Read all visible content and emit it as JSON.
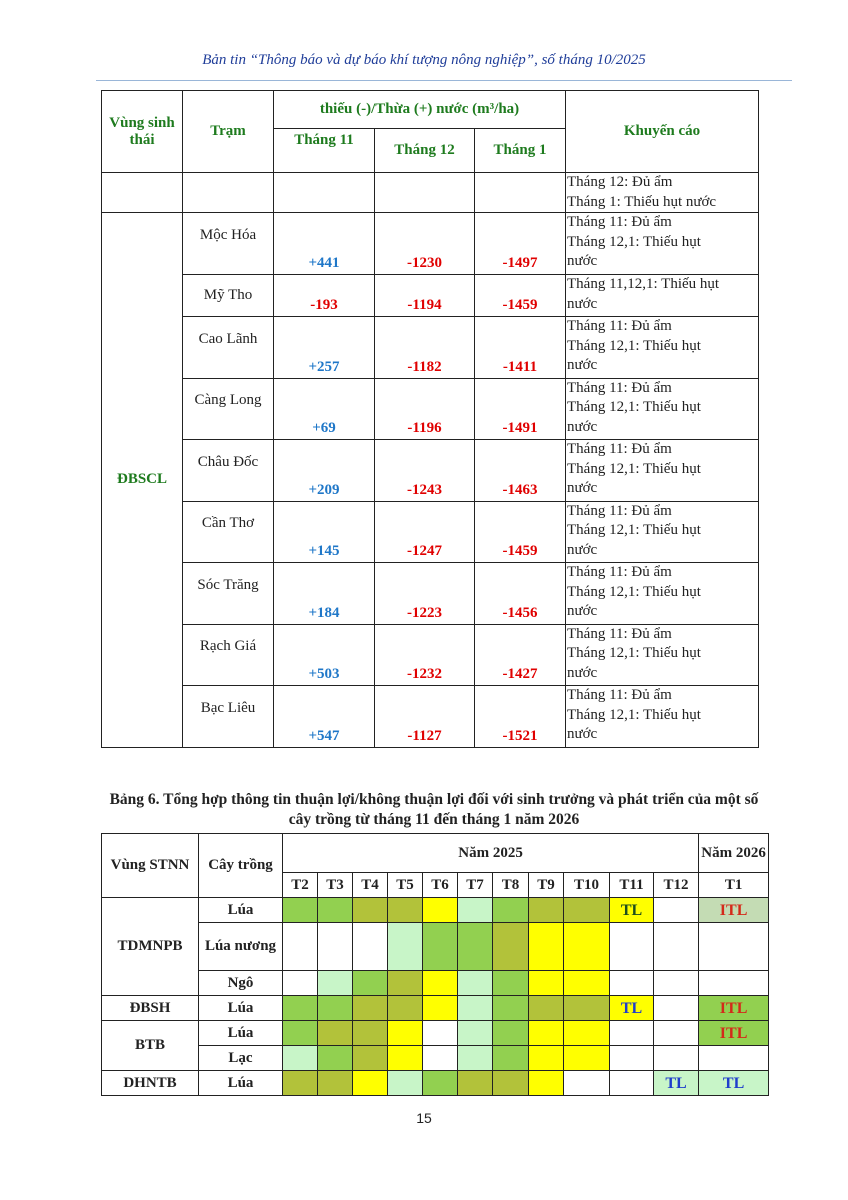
{
  "header": "Bản tin “Thông báo và dự báo khí tượng nông nghiệp”, số tháng 10/2025",
  "table5": {
    "headers": {
      "region": "Vùng sinh thái",
      "station": "Trạm",
      "group": "thiếu (-)/Thừa (+) nước (m³/ha)",
      "m11": "Tháng 11",
      "m12": "Tháng 12",
      "m1": "Tháng 1",
      "advice": "Khuyến cáo"
    },
    "first_row_advice": [
      "Tháng 12: Đủ ẩm",
      "Tháng 1: Thiếu hụt nước"
    ],
    "region": "ĐBSCL",
    "rows": [
      {
        "station": "Mộc Hóa",
        "m11": "+441",
        "m12": "-1230",
        "m1": "-1497",
        "advice": [
          "Tháng 11: Đủ ẩm",
          "Tháng 12,1: Thiếu hụt",
          "nước"
        ]
      },
      {
        "station": "Mỹ Tho",
        "m11": "-193",
        "m12": "-1194",
        "m1": "-1459",
        "advice": [
          "Tháng 11,12,1: Thiếu hụt",
          "nước"
        ]
      },
      {
        "station": "Cao Lãnh",
        "m11": "+257",
        "m12": "-1182",
        "m1": "-1411",
        "advice": [
          "Tháng 11: Đủ ẩm",
          "Tháng 12,1: Thiếu hụt",
          "nước"
        ]
      },
      {
        "station": "Càng Long",
        "m11": "+69",
        "m12": "-1196",
        "m1": "-1491",
        "advice": [
          "Tháng 11: Đủ ẩm",
          "Tháng 12,1: Thiếu hụt",
          "nước"
        ]
      },
      {
        "station": "Châu Đốc",
        "m11": "+209",
        "m12": "-1243",
        "m1": "-1463",
        "advice": [
          "Tháng 11: Đủ ẩm",
          "Tháng 12,1: Thiếu hụt",
          "nước"
        ]
      },
      {
        "station": "Cần Thơ",
        "m11": "+145",
        "m12": "-1247",
        "m1": "-1459",
        "advice": [
          "Tháng 11: Đủ ẩm",
          "Tháng 12,1: Thiếu hụt",
          "nước"
        ]
      },
      {
        "station": "Sóc Trăng",
        "m11": "+184",
        "m12": "-1223",
        "m1": "-1456",
        "advice": [
          "Tháng 11: Đủ ẩm",
          "Tháng 12,1: Thiếu hụt",
          "nước"
        ]
      },
      {
        "station": "Rạch Giá",
        "m11": "+503",
        "m12": "-1232",
        "m1": "-1427",
        "advice": [
          "Tháng 11: Đủ ẩm",
          "Tháng 12,1: Thiếu hụt",
          "nước"
        ]
      },
      {
        "station": "Bạc Liêu",
        "m11": "+547",
        "m12": "-1127",
        "m1": "-1521",
        "advice": [
          "Tháng 11: Đủ ẩm",
          "Tháng 12,1: Thiếu hụt",
          "nước"
        ]
      }
    ]
  },
  "table6": {
    "title": "Bảng 6. Tổng hợp thông tin thuận lợi/không thuận lợi đối với sinh trưởng và phát triển của một số cây trồng từ tháng 11 đến tháng 1 năm 2026",
    "headers": {
      "region": "Vùng STNN",
      "crop": "Cây trồng",
      "y2025": "Năm 2025",
      "y2026": "Năm 2026",
      "months": [
        "T2",
        "T3",
        "T4",
        "T5",
        "T6",
        "T7",
        "T8",
        "T9",
        "T10",
        "T11",
        "T12",
        "T1"
      ]
    },
    "colors": {
      "G": "#92d050",
      "O": "#b2c23a",
      "Y": "#ffff00",
      "L": "#c8f5c8",
      "S": "#c4dcb4",
      "W": "#ffffff",
      "text_blue": "#1f3dcc",
      "text_red": "#d42a1a",
      "text_dark": "#1d4d1d"
    },
    "groups": [
      {
        "region": "TDMNPB",
        "rows": [
          {
            "crop": "Lúa",
            "cells": [
              "G",
              "G",
              "O",
              "O",
              "Y",
              "L",
              "G",
              "O",
              "O",
              "Y",
              "W",
              "S"
            ],
            "labels": {
              "9": [
                "TL",
                "text_dark"
              ],
              "11": [
                "ITL",
                "text_red"
              ]
            }
          },
          {
            "crop": "Lúa nương",
            "cells": [
              "W",
              "W",
              "W",
              "L",
              "G",
              "G",
              "O",
              "Y",
              "Y",
              "W",
              "W",
              "W"
            ],
            "labels": {}
          },
          {
            "crop": "Ngô",
            "cells": [
              "W",
              "L",
              "G",
              "O",
              "Y",
              "L",
              "G",
              "Y",
              "Y",
              "W",
              "W",
              "W"
            ],
            "labels": {}
          }
        ]
      },
      {
        "region": "ĐBSH",
        "rows": [
          {
            "crop": "Lúa",
            "cells": [
              "G",
              "G",
              "O",
              "O",
              "Y",
              "L",
              "G",
              "O",
              "O",
              "Y",
              "W",
              "G"
            ],
            "labels": {
              "9": [
                "TL",
                "text_blue"
              ],
              "11": [
                "ITL",
                "text_red"
              ]
            }
          }
        ]
      },
      {
        "region": "BTB",
        "rows": [
          {
            "crop": "Lúa",
            "cells": [
              "G",
              "O",
              "O",
              "Y",
              "W",
              "L",
              "G",
              "Y",
              "Y",
              "W",
              "W",
              "G"
            ],
            "labels": {
              "11": [
                "ITL",
                "text_red"
              ]
            }
          },
          {
            "crop": "Lạc",
            "cells": [
              "L",
              "G",
              "O",
              "Y",
              "W",
              "L",
              "G",
              "Y",
              "Y",
              "W",
              "W",
              "W"
            ],
            "labels": {}
          }
        ]
      },
      {
        "region": "DHNTB",
        "rows": [
          {
            "crop": "Lúa",
            "cells": [
              "O",
              "O",
              "Y",
              "L",
              "G",
              "O",
              "O",
              "Y",
              "W",
              "W",
              "L",
              "L"
            ],
            "labels": {
              "10": [
                "TL",
                "text_blue"
              ],
              "11": [
                "TL",
                "text_blue"
              ]
            }
          }
        ]
      }
    ]
  },
  "page_number": "15"
}
